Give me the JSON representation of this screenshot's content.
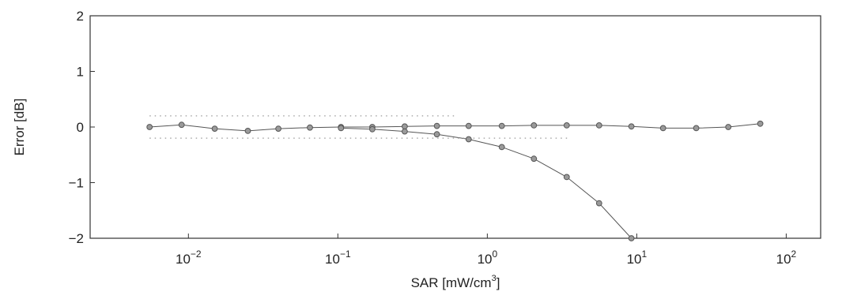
{
  "chart_data": {
    "type": "line",
    "title": "",
    "xlabel": "SAR [mW/cm",
    "xlabel_sup": "3",
    "xlabel_end": "]",
    "ylabel": "Error [dB]",
    "xscale": "log",
    "xlim": [
      0.0022,
      170
    ],
    "ylim": [
      -2,
      2
    ],
    "grid": false,
    "x_ticks": [
      {
        "value": 0.01,
        "base": "10",
        "exp": "−2"
      },
      {
        "value": 0.1,
        "base": "10",
        "exp": "−1"
      },
      {
        "value": 1,
        "base": "10",
        "exp": "0"
      },
      {
        "value": 10,
        "base": "10",
        "exp": "1"
      },
      {
        "value": 100,
        "base": "10",
        "exp": "2"
      }
    ],
    "y_ticks": [
      {
        "value": 2,
        "label": "2"
      },
      {
        "value": 1,
        "label": "1"
      },
      {
        "value": 0,
        "label": "0"
      },
      {
        "value": -1,
        "label": "−1"
      },
      {
        "value": -2,
        "label": "−2"
      }
    ],
    "series": [
      {
        "style": "solid-markers",
        "color": "#555555",
        "x": [
          0.0055,
          0.009,
          0.015,
          0.025,
          0.04,
          0.065,
          0.105,
          0.17,
          0.28,
          0.46,
          0.75,
          1.25,
          2.05,
          3.4,
          5.6,
          9.2,
          15,
          25,
          41,
          67
        ],
        "y": [
          0.0,
          0.04,
          -0.03,
          -0.07,
          -0.03,
          -0.01,
          0.0,
          0.0,
          0.01,
          0.02,
          0.02,
          0.02,
          0.03,
          0.03,
          0.03,
          0.01,
          -0.02,
          -0.02,
          0.0,
          0.06
        ]
      },
      {
        "style": "solid-markers",
        "color": "#555555",
        "x": [
          0.105,
          0.17,
          0.28,
          0.46,
          0.75,
          1.25,
          2.05,
          3.4,
          5.6,
          9.2
        ],
        "y": [
          -0.02,
          -0.04,
          -0.08,
          -0.13,
          -0.22,
          -0.36,
          -0.57,
          -0.9,
          -1.37,
          -2.0
        ]
      },
      {
        "style": "dotted",
        "color": "#999999",
        "x": [
          0.0055,
          0.6
        ],
        "y": [
          0.2,
          0.2
        ]
      },
      {
        "style": "dotted",
        "color": "#999999",
        "x": [
          0.0055,
          3.5
        ],
        "y": [
          -0.2,
          -0.2
        ]
      }
    ]
  }
}
